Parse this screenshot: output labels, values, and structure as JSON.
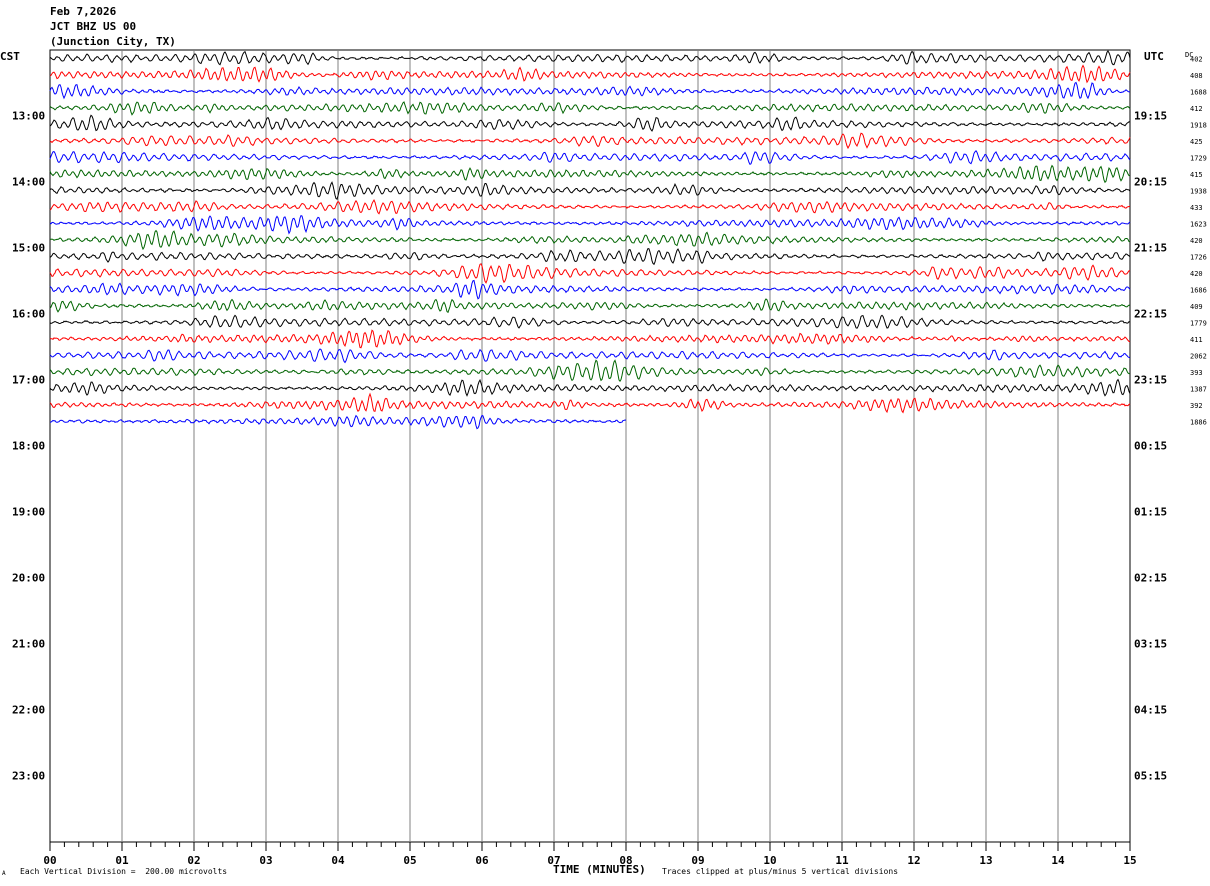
{
  "header": {
    "date": "Feb 7,2026",
    "station": "JCT BHZ US 00",
    "location": "(Junction City, TX)"
  },
  "left_zone_label": "CST",
  "right_zone_label": "UTC",
  "dc_label": "DC",
  "footer": {
    "scale_note": "Each Vertical Division =  200.00 microvolts",
    "clip_note": "Traces clipped at plus/minus 5 vertical divisions",
    "corner_mark": "A"
  },
  "chart_data": {
    "type": "line",
    "title": "",
    "xlabel": "TIME (MINUTES)",
    "ylabel": "",
    "xlim": [
      0,
      15
    ],
    "x_ticks": [
      "00",
      "01",
      "02",
      "03",
      "04",
      "05",
      "06",
      "07",
      "08",
      "09",
      "10",
      "11",
      "12",
      "13",
      "14",
      "15"
    ],
    "left_hour_labels": [
      "13:00",
      "14:00",
      "15:00",
      "16:00",
      "17:00",
      "18:00",
      "19:00",
      "20:00",
      "21:00",
      "22:00",
      "23:00"
    ],
    "right_hour_labels": [
      "19:15",
      "20:15",
      "21:15",
      "22:15",
      "23:15",
      "00:15",
      "01:15",
      "02:15",
      "03:15",
      "04:15",
      "05:15"
    ],
    "trace_colors": [
      "#000000",
      "#ff0000",
      "#0000ff",
      "#006400"
    ],
    "rows_total": 48,
    "rows_drawn": 23,
    "last_row_minutes": 8,
    "dc_offsets": [
      "402",
      "408",
      "1688",
      "412",
      "1918",
      "425",
      "1729",
      "415",
      "1938",
      "433",
      "1623",
      "420",
      "1726",
      "420",
      "1686",
      "409",
      "1779",
      "411",
      "2062",
      "393",
      "1387",
      "392",
      "1886"
    ]
  }
}
